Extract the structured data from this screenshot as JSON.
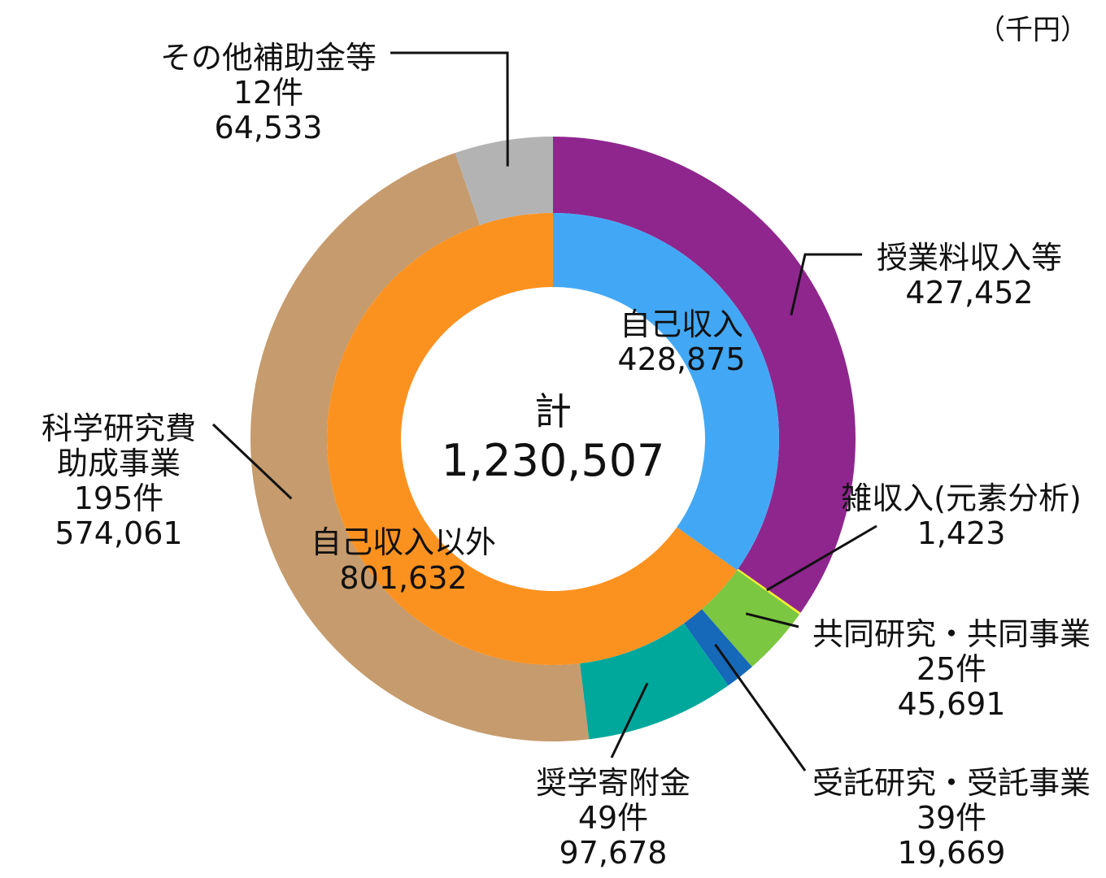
{
  "chart_data": {
    "type": "pie",
    "title": "",
    "unit": "（千円）",
    "total": {
      "label": "計",
      "value": "1,230,507"
    },
    "inner": [
      {
        "name": "自己収入",
        "value": 428875,
        "value_text": "428,875",
        "color": "#42A8F5"
      },
      {
        "name": "自己収入以外",
        "value": 801632,
        "value_text": "801,632",
        "color": "#FB9220"
      }
    ],
    "outer": [
      {
        "name": "授業料収入等",
        "count": "",
        "value": 427452,
        "value_text": "427,452",
        "color": "#8F268E"
      },
      {
        "name": "雑収入(元素分析)",
        "count": "",
        "value": 1423,
        "value_text": "1,423",
        "color": "#F2F22B"
      },
      {
        "name": "共同研究・共同事業",
        "count": "25件",
        "value": 45691,
        "value_text": "45,691",
        "color": "#7CC742"
      },
      {
        "name": "受託研究・受託事業",
        "count": "39件",
        "value": 19669,
        "value_text": "19,669",
        "color": "#1668B8"
      },
      {
        "name": "奨学寄附金",
        "count": "49件",
        "value": 97678,
        "value_text": "97,678",
        "color": "#00A89C"
      },
      {
        "name": "科学研究費",
        "name2": "助成事業",
        "count": "195件",
        "value": 574061,
        "value_text": "574,061",
        "color": "#C69B6D"
      },
      {
        "name": "その他補助金等",
        "count": "12件",
        "value": 64533,
        "value_text": "64,533",
        "color": "#B3B3B3"
      }
    ]
  }
}
